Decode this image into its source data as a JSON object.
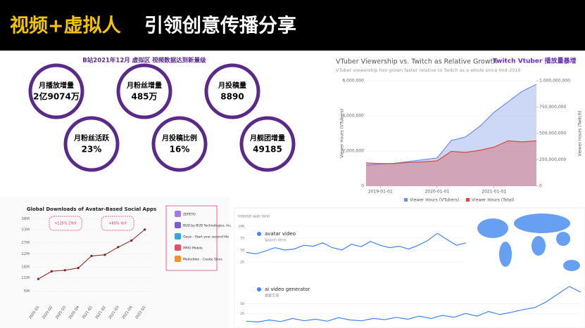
{
  "header": {
    "title_highlight": "视频+虚拟人",
    "title_rest": "引领创意传播分享"
  },
  "stats": {
    "title": "B站2021年12月 虚拟区 视频数据达到新量级",
    "items": [
      {
        "label": "月播放增量",
        "value": "2亿9074万"
      },
      {
        "label": "月粉丝增量",
        "value": "485万"
      },
      {
        "label": "月投稿量",
        "value": "8890"
      },
      {
        "label": "月粉丝活跃",
        "value": "23%"
      },
      {
        "label": "月投稿比例",
        "value": "16%"
      },
      {
        "label": "月舰团增量",
        "value": "49185"
      }
    ]
  },
  "chart_data": [
    {
      "type": "area",
      "title": "VTuber Viewership vs. Twitch as Relative Growth",
      "subtitle": "VTuber viewership has grown faster relative to Twitch as a whole since mid-2019",
      "annotation": "Twitch Vtuber 播放量暴增",
      "y_label": "Viewer Hours (VTubers)",
      "y2_label": "Viewer Hours (Twitch)",
      "x": [
        "2018-10-01",
        "2019-01-01",
        "2019-04-01",
        "2019-07-01",
        "2019-10-01",
        "2020-01-01",
        "2020-04-01",
        "2020-07-01",
        "2020-10-01",
        "2021-01-01",
        "2021-04-01",
        "2021-07-01",
        "2021-10-01"
      ],
      "xlim": [
        "2018-10-01",
        "2021-10-01"
      ],
      "xticks": [
        "2019-01-01",
        "2020-01-01",
        "2021-01-01"
      ],
      "ylim": [
        0,
        6000000
      ],
      "yticks": [
        0,
        {
          "value": 2000000,
          "label": "2,000,000"
        },
        {
          "value": 4000000,
          "label": "4,000,000"
        },
        {
          "value": 6000000,
          "label": "6,000,000"
        }
      ],
      "y2lim": [
        0,
        1000000000
      ],
      "y2ticks": [
        0,
        {
          "value": 250000000,
          "label": "250,000,000"
        },
        {
          "value": 500000000,
          "label": "500,000,000"
        },
        {
          "value": 750000000,
          "label": "750,000,000"
        },
        {
          "value": 1000000000,
          "label": "1,000,000,000"
        }
      ],
      "grid": true,
      "series": [
        {
          "name": "Viewer Hours (VTubers)",
          "color": "#6f8ee8",
          "values": [
            1200000,
            1250000,
            1300000,
            1400000,
            1500000,
            1600000,
            2600000,
            2800000,
            3400000,
            4200000,
            4800000,
            5400000,
            5800000
          ]
        },
        {
          "name": "Viewer Hours (Total)",
          "color": "#d9483f",
          "axis": "y2",
          "values": [
            220000000,
            215000000,
            215000000,
            225000000,
            230000000,
            240000000,
            330000000,
            320000000,
            340000000,
            370000000,
            430000000,
            420000000,
            430000000
          ]
        }
      ]
    },
    {
      "type": "line",
      "title": "Global Downloads of Avatar-Based Social Apps",
      "categories": [
        "2020 Q1",
        "2020 Q2",
        "2020 Q3",
        "2020 Q4",
        "2021 Q1",
        "2021 Q2",
        "2021 Q3",
        "2021 Q4",
        "2022 Q1"
      ],
      "ylim": [
        0,
        40
      ],
      "yticks": [
        {
          "value": 5,
          "label": "5M"
        },
        {
          "value": 11,
          "label": "11M"
        },
        {
          "value": 16,
          "label": "16M"
        },
        {
          "value": 22,
          "label": "22M"
        },
        {
          "value": 27,
          "label": "27M"
        },
        {
          "value": 33,
          "label": "33M"
        },
        {
          "value": 38,
          "label": "38M"
        }
      ],
      "grid": true,
      "annotations": [
        "+125% 2YoY",
        "+60% YoY"
      ],
      "apps": [
        "ZEPETO",
        "BUD by BUD Technologies, Inc.",
        "Oasis - Start your second life",
        "IMVU Mobile",
        "Makerblox - Create Skins"
      ],
      "series": [
        {
          "name": "Downloads",
          "color": "#8b1a1a",
          "values": [
            10.5,
            14,
            14.5,
            15.5,
            21,
            21.5,
            25,
            28,
            33
          ]
        }
      ]
    },
    {
      "type": "line",
      "title": "Interest over time",
      "categories": [
        null,
        null,
        null,
        null,
        null,
        null,
        null,
        null,
        null,
        null,
        null,
        null,
        null,
        null,
        null,
        null,
        null,
        null,
        null,
        null,
        null,
        null,
        null,
        null
      ],
      "ylim": [
        0,
        100
      ],
      "yticks": [
        25,
        50,
        75,
        100
      ],
      "grid": true,
      "subtitle": "Search term",
      "series": [
        {
          "name": "avatar video",
          "color": "#4285f4",
          "values": [
            45,
            42,
            48,
            55,
            50,
            52,
            60,
            58,
            65,
            55,
            50,
            62,
            57,
            68,
            60,
            55,
            58,
            52,
            60,
            70,
            85,
            72,
            60,
            65
          ]
        }
      ]
    },
    {
      "type": "line",
      "categories": [
        null,
        null,
        null,
        null,
        null,
        null,
        null,
        null,
        null,
        null,
        null,
        null,
        null,
        null,
        null,
        null,
        null,
        null,
        null,
        null,
        null,
        null,
        null,
        null,
        null,
        null,
        null,
        null,
        null,
        null
      ],
      "ylim": [
        0,
        100
      ],
      "yticks": [
        25,
        50
      ],
      "grid": true,
      "subtitle": "搜索字词",
      "series": [
        {
          "name": "ai video generator",
          "color": "#4285f4",
          "values": [
            5,
            3,
            8,
            4,
            12,
            6,
            10,
            5,
            14,
            8,
            6,
            12,
            9,
            15,
            10,
            18,
            12,
            20,
            15,
            25,
            18,
            30,
            22,
            28,
            35,
            40,
            55,
            75,
            95,
            80
          ]
        }
      ]
    }
  ]
}
